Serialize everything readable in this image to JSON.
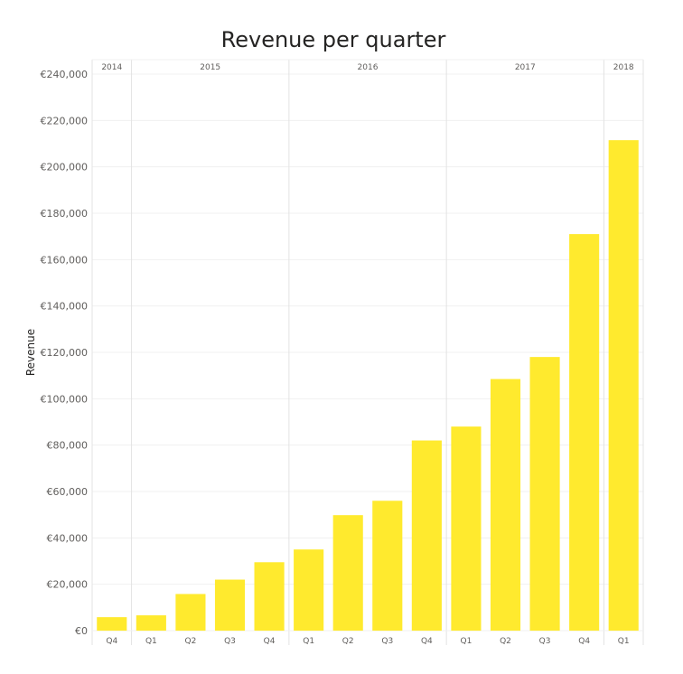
{
  "chart_data": {
    "type": "bar",
    "title": "Revenue per quarter",
    "ylabel": "Revenue",
    "xlabel": "",
    "ylim": [
      0,
      240000
    ],
    "yticks": [
      0,
      20000,
      40000,
      60000,
      80000,
      100000,
      120000,
      140000,
      160000,
      180000,
      200000,
      220000,
      240000
    ],
    "ytick_labels": [
      "€0",
      "€20,000",
      "€40,000",
      "€60,000",
      "€80,000",
      "€100,000",
      "€120,000",
      "€140,000",
      "€160,000",
      "€180,000",
      "€200,000",
      "€220,000",
      "€240,000"
    ],
    "categories": [
      "Q4",
      "Q1",
      "Q2",
      "Q3",
      "Q4",
      "Q1",
      "Q2",
      "Q3",
      "Q4",
      "Q1",
      "Q2",
      "Q3",
      "Q4",
      "Q1"
    ],
    "years": [
      {
        "label": "2014",
        "count": 1
      },
      {
        "label": "2015",
        "count": 4
      },
      {
        "label": "2016",
        "count": 4
      },
      {
        "label": "2017",
        "count": 4
      },
      {
        "label": "2018",
        "count": 1
      }
    ],
    "values": [
      5800,
      6600,
      15800,
      22000,
      29500,
      35000,
      49800,
      56000,
      82000,
      88000,
      108500,
      118000,
      171000,
      211500
    ],
    "bar_color": "#FFEA2E",
    "grid": true,
    "legend": "none"
  }
}
